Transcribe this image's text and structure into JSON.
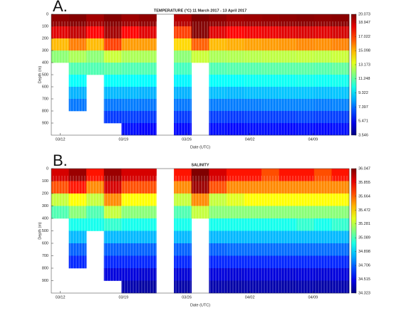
{
  "chart_data": [
    {
      "type": "heatmap",
      "panel_label": "A.",
      "title": "TEMPERATURE (°C) 11 March 2017 - 13 April 2017",
      "x_label": "Date (UTC)",
      "y_label": "Depth (m)",
      "xlim": [
        0,
        33
      ],
      "xticks": [
        {
          "value": 1,
          "label": "03/12"
        },
        {
          "value": 8,
          "label": "03/19"
        },
        {
          "value": 15,
          "label": "03/26"
        },
        {
          "value": 22,
          "label": "04/02"
        },
        {
          "value": 29,
          "label": "04/09"
        }
      ],
      "ylim": [
        0,
        1000
      ],
      "yticks": [
        0,
        100,
        200,
        300,
        400,
        500,
        600,
        700,
        800,
        900
      ],
      "colormap": "jet",
      "clim": [
        3.546,
        20.073
      ],
      "cticks": [
        3.546,
        5.471,
        7.397,
        9.322,
        11.248,
        13.173,
        15.098,
        17.022,
        18.947,
        20.073
      ],
      "z": [
        [
          19.8,
          20,
          19.5,
          20,
          19.6,
          19.8,
          null,
          19.2,
          20.07,
          19.8,
          19.5,
          19.6,
          19.7,
          19.8,
          19.9,
          19.8,
          19.9
        ],
        [
          18.5,
          19,
          18,
          19.5,
          18,
          18.5,
          null,
          17,
          20,
          18.5,
          18,
          18.2,
          18.3,
          18.5,
          18.6,
          18.5,
          18.7
        ],
        [
          15,
          16,
          15,
          17,
          15.5,
          15.5,
          null,
          14.5,
          16.5,
          15,
          15.2,
          15.4,
          15.5,
          15.6,
          15.8,
          15.7,
          15.9
        ],
        [
          12,
          12.5,
          12,
          13,
          12.5,
          12.5,
          null,
          12,
          13,
          12.5,
          12.6,
          12.7,
          12.8,
          12.8,
          12.9,
          12.8,
          13
        ],
        [
          null,
          11,
          11,
          11.2,
          11,
          11,
          null,
          10.8,
          null,
          11,
          11.1,
          11.1,
          11.2,
          11.2,
          11.2,
          11.1,
          11.3
        ],
        [
          null,
          9.8,
          null,
          9.8,
          9.8,
          9.7,
          null,
          9.6,
          null,
          9.8,
          9.8,
          9.9,
          9.9,
          9.9,
          10,
          9.9,
          10
        ],
        [
          null,
          8.5,
          null,
          8.6,
          8.6,
          8.5,
          null,
          8.5,
          null,
          8.7,
          8.6,
          8.7,
          8.7,
          8.8,
          8.8,
          8.7,
          8.8
        ],
        [
          null,
          7.5,
          null,
          7.5,
          7.6,
          7.5,
          null,
          7.5,
          null,
          7.6,
          7.6,
          7.6,
          7.7,
          7.7,
          7.7,
          7.6,
          7.7
        ],
        [
          null,
          null,
          null,
          6.5,
          6.6,
          6.5,
          null,
          6.5,
          null,
          6.6,
          6.5,
          6.6,
          6.6,
          6.6,
          6.7,
          6.6,
          6.6
        ],
        [
          null,
          null,
          null,
          null,
          5.8,
          5.6,
          null,
          5.7,
          null,
          5.8,
          5.7,
          5.8,
          5.8,
          5.7,
          5.8,
          5.7,
          5.8
        ]
      ]
    },
    {
      "type": "heatmap",
      "panel_label": "B.",
      "title": "SALINITY",
      "x_label": "Date (UTC)",
      "y_label": "Depth (m)",
      "xlim": [
        0,
        33
      ],
      "xticks": [
        {
          "value": 1,
          "label": "03/12"
        },
        {
          "value": 8,
          "label": "03/19"
        },
        {
          "value": 15,
          "label": "03/26"
        },
        {
          "value": 22,
          "label": "04/02"
        },
        {
          "value": 29,
          "label": "04/09"
        }
      ],
      "ylim": [
        0,
        1000
      ],
      "yticks": [
        0,
        100,
        200,
        300,
        400,
        500,
        600,
        700,
        800,
        900
      ],
      "colormap": "jet",
      "clim": [
        34.323,
        36.047
      ],
      "cticks": [
        34.323,
        34.515,
        34.706,
        34.898,
        35.089,
        35.281,
        35.472,
        35.664,
        35.855,
        36.047
      ],
      "z": [
        [
          35.9,
          36,
          35.8,
          36,
          35.9,
          35.9,
          null,
          35.8,
          36.047,
          35.9,
          35.8,
          35.8,
          35.7,
          35.8,
          35.8,
          35.7,
          35.8
        ],
        [
          35.7,
          35.8,
          35.6,
          35.9,
          35.7,
          35.7,
          null,
          35.6,
          36,
          35.7,
          35.6,
          35.6,
          35.6,
          35.6,
          35.6,
          35.6,
          35.6
        ],
        [
          35.3,
          35.4,
          35.3,
          35.6,
          35.4,
          35.4,
          null,
          35.3,
          35.6,
          35.3,
          35.35,
          35.4,
          35.4,
          35.4,
          35.4,
          35.4,
          35.4
        ],
        [
          35.1,
          35.2,
          35.1,
          35.3,
          35.2,
          35.2,
          null,
          35.1,
          35.3,
          35.2,
          35.2,
          35.2,
          35.2,
          35.2,
          35.2,
          35.2,
          35.2
        ],
        [
          null,
          35,
          35,
          35.05,
          35,
          35,
          null,
          35,
          null,
          35,
          35,
          35,
          35,
          35,
          35.05,
          35,
          35.05
        ],
        [
          null,
          34.85,
          null,
          34.85,
          34.85,
          34.85,
          null,
          34.85,
          null,
          34.85,
          34.85,
          34.85,
          34.85,
          34.85,
          34.85,
          34.85,
          34.85
        ],
        [
          null,
          34.7,
          null,
          34.7,
          34.7,
          34.7,
          null,
          34.7,
          null,
          34.7,
          34.72,
          34.72,
          34.72,
          34.72,
          34.72,
          34.72,
          34.72
        ],
        [
          null,
          34.6,
          null,
          34.6,
          34.6,
          34.6,
          null,
          34.6,
          null,
          34.6,
          34.6,
          34.6,
          34.6,
          34.6,
          34.6,
          34.6,
          34.6
        ],
        [
          null,
          null,
          null,
          34.48,
          34.48,
          34.46,
          null,
          34.47,
          null,
          34.48,
          34.47,
          34.48,
          34.48,
          34.47,
          34.48,
          34.47,
          34.48
        ],
        [
          null,
          null,
          null,
          null,
          34.4,
          34.38,
          null,
          34.39,
          null,
          34.4,
          34.39,
          34.4,
          34.4,
          34.39,
          34.4,
          34.39,
          34.4
        ]
      ]
    }
  ]
}
